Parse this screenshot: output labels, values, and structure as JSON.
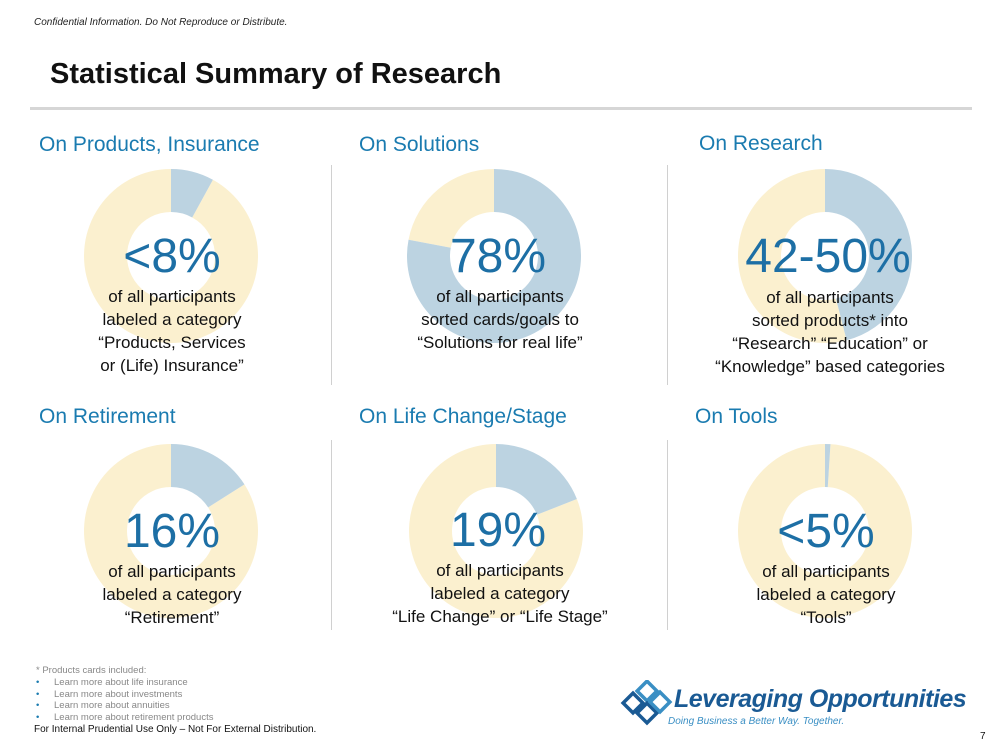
{
  "header": {
    "confidential": "Confidential Information. Do Not Reproduce or Distribute.",
    "title": "Statistical Summary of Research"
  },
  "colors": {
    "accent": "#1a7bb0",
    "slice": "#bcd3e1",
    "rest": "#fbf0cf"
  },
  "panels": [
    {
      "title": "On Products, Insurance",
      "stat": "<8%",
      "fraction": 0.08,
      "lines": [
        "of all participants",
        "labeled a category",
        "“Products, Services",
        "or (Life) Insurance”"
      ]
    },
    {
      "title": "On Solutions",
      "stat": "78%",
      "fraction": 0.78,
      "lines": [
        "of all participants",
        "sorted cards/goals to",
        "“Solutions for real life”"
      ]
    },
    {
      "title": "On Research",
      "stat": "42-50%",
      "fraction": 0.46,
      "lines": [
        "of all participants",
        "sorted products* into",
        "“Research” “Education” or",
        "“Knowledge” based categories"
      ]
    },
    {
      "title": "On Retirement",
      "stat": "16%",
      "fraction": 0.16,
      "lines": [
        "of all participants",
        "labeled a category",
        "“Retirement”"
      ]
    },
    {
      "title": "On Life Change/Stage",
      "stat": "19%",
      "fraction": 0.19,
      "lines": [
        "of all participants",
        "labeled a category",
        "“Life Change” or “Life Stage”"
      ]
    },
    {
      "title": "On Tools",
      "stat": "<5%",
      "fraction": 0.01,
      "lines": [
        "of all participants",
        "labeled a category",
        "“Tools”"
      ]
    }
  ],
  "footnote": {
    "heading": "* Products cards included:",
    "items": [
      "Learn more about life insurance",
      "Learn more about investments",
      "Learn more about annuities",
      "Learn more about retirement products"
    ]
  },
  "footer": {
    "internal": "For Internal Prudential Use Only – Not For External Distribution.",
    "page": "7"
  },
  "logo": {
    "name": "Leveraging Opportunities",
    "tagline": "Doing Business a Better Way. Together."
  }
}
